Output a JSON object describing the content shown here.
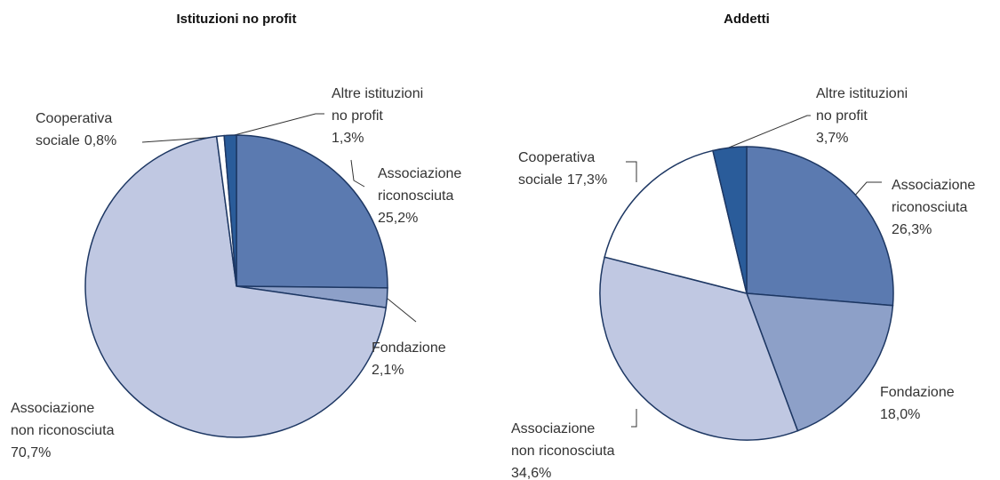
{
  "chart_data": [
    {
      "type": "pie",
      "title": "Istituzioni no profit",
      "categories": [
        "Associazione riconosciuta",
        "Fondazione",
        "Associazione non riconosciuta",
        "Cooperativa sociale",
        "Altre istituzioni no profit"
      ],
      "values": [
        25.2,
        2.1,
        70.7,
        0.8,
        1.3
      ],
      "value_labels": [
        "25,2%",
        "2,1%",
        "70,7%",
        "0,8%",
        "1,3%"
      ],
      "colors": [
        "#5b7ab0",
        "#8da0c8",
        "#c0c8e2",
        "#ffffff",
        "#2a5c9a"
      ]
    },
    {
      "type": "pie",
      "title": "Addetti",
      "categories": [
        "Associazione riconosciuta",
        "Fondazione",
        "Associazione non riconosciuta",
        "Cooperativa sociale",
        "Altre istituzioni no profit"
      ],
      "values": [
        26.3,
        18.0,
        34.6,
        17.3,
        3.7
      ],
      "value_labels": [
        "26,3%",
        "18,0%",
        "34,6%",
        "17,3%",
        "3,7%"
      ],
      "colors": [
        "#5b7ab0",
        "#8da0c8",
        "#c0c8e2",
        "#ffffff",
        "#2a5c9a"
      ]
    }
  ]
}
